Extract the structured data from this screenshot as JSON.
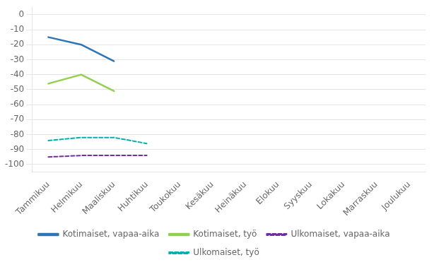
{
  "chart_data": {
    "type": "line",
    "categories": [
      "Tammikuu",
      "Helmikuu",
      "Maaliskuu",
      "Huhtikuu",
      "Toukokuu",
      "Kesäkuu",
      "Heinäkuu",
      "Elokuu",
      "Syyskuu",
      "Lokakuu",
      "Marraskuu",
      "Joulukuu"
    ],
    "series": [
      {
        "name": "Kotimaiset, vapaa-aika",
        "color": "#2e75b6",
        "line_style": "solid",
        "values": [
          -15,
          -20,
          -31,
          null,
          null,
          null,
          null,
          null,
          null,
          null,
          null,
          null
        ]
      },
      {
        "name": "Kotimaiset, työ",
        "color": "#92d050",
        "line_style": "solid",
        "values": [
          -46,
          -40,
          -51,
          null,
          null,
          null,
          null,
          null,
          null,
          null,
          null,
          null
        ]
      },
      {
        "name": "Ulkomaiset, vapaa-aika",
        "color": "#7030a0",
        "line_style": "dashed",
        "values": [
          -95,
          -94,
          -94,
          -94,
          null,
          null,
          null,
          null,
          null,
          null,
          null,
          null
        ]
      },
      {
        "name": "Ulkomaiset, työ",
        "color": "#00b0b0",
        "line_style": "dashed",
        "values": [
          -84,
          -82,
          -82,
          -86,
          null,
          null,
          null,
          null,
          null,
          null,
          null,
          null
        ]
      }
    ],
    "ylim": [
      -105,
      5
    ],
    "yticks": [
      0,
      -10,
      -20,
      -30,
      -40,
      -50,
      -60,
      -70,
      -80,
      -90,
      -100
    ],
    "grid": true,
    "legend": "bottom"
  }
}
